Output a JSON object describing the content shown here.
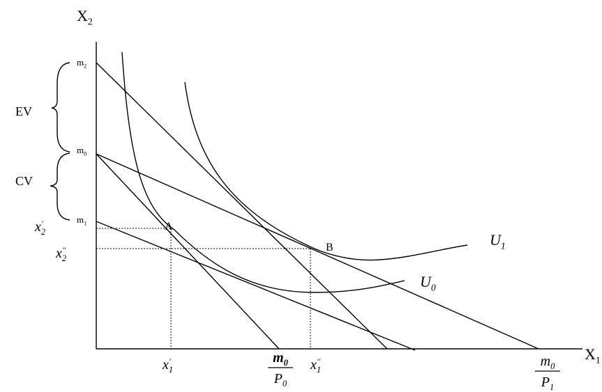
{
  "labels": [
    {
      "base": "X",
      "sub": "2"
    },
    {
      "base": "X",
      "sub": "1"
    },
    {
      "base": "m",
      "sub": "2"
    },
    {
      "base": "m",
      "sub": "0"
    },
    {
      "base": "m",
      "sub": "1"
    },
    {
      "base": "EV"
    },
    {
      "base": "CV"
    },
    {
      "base": "x",
      "sub": "2",
      "sup": "'"
    },
    {
      "base": "x",
      "sub": "2",
      "sup": "''"
    },
    {
      "base": "A"
    },
    {
      "base": "B"
    },
    {
      "base": "U",
      "sub": "1"
    },
    {
      "base": "U",
      "sub": "0"
    },
    {
      "base": "x",
      "sub": "1",
      "sup": "'"
    },
    {
      "base": "x",
      "sub": "1",
      "sup": "''"
    }
  ],
  "fractions": [
    {
      "num": {
        "base": "m",
        "sub": "0"
      },
      "den": {
        "base": "P",
        "sub": "0"
      }
    },
    {
      "num": {
        "base": "m",
        "sub": "0"
      },
      "den": {
        "base": "P",
        "sub": "1"
      }
    }
  ]
}
